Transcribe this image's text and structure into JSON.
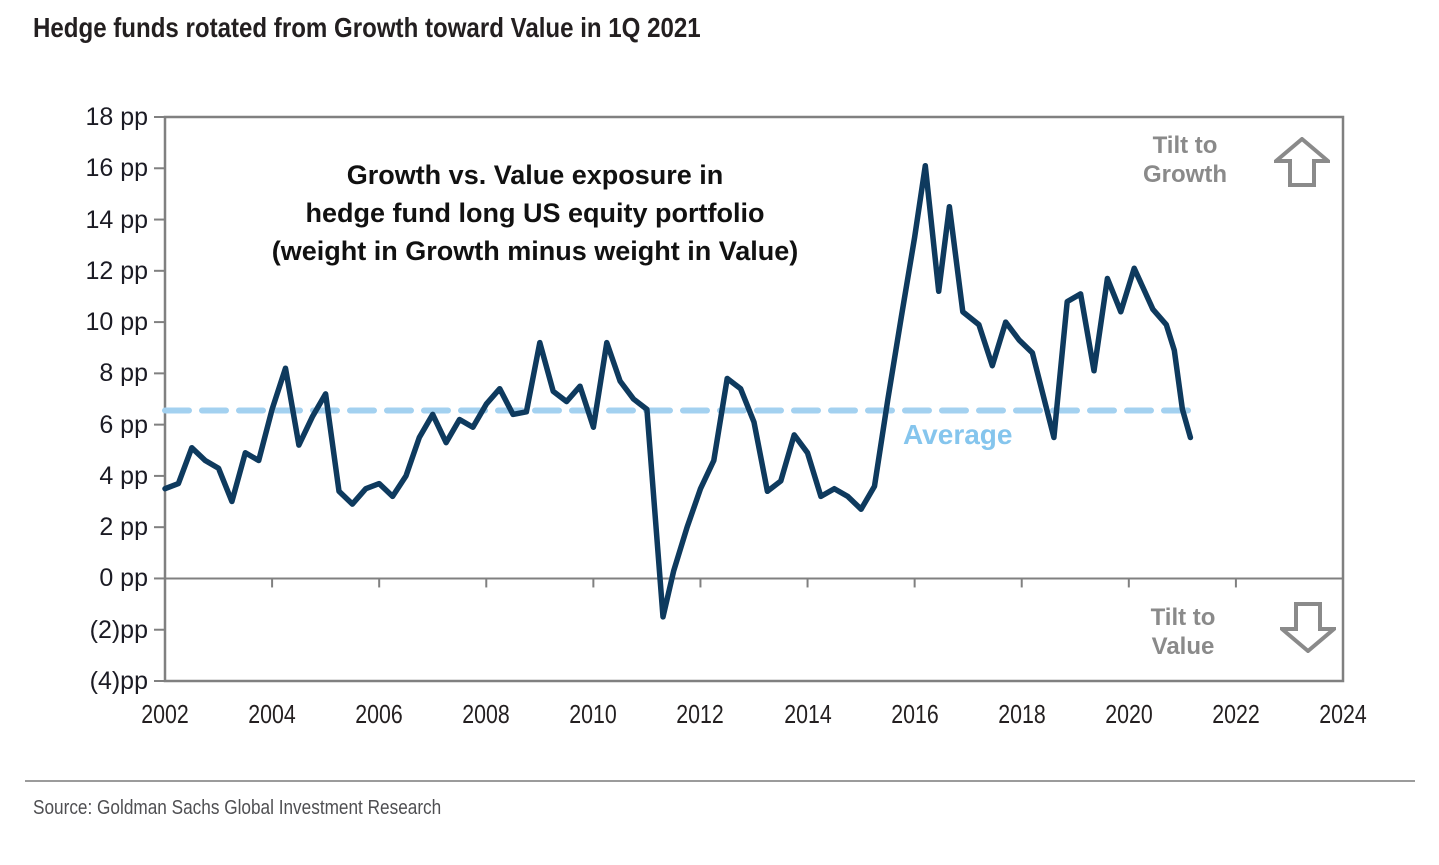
{
  "page": {
    "title": "Hedge funds rotated from Growth toward Value in 1Q 2021",
    "source": "Source: Goldman Sachs Global Investment Research"
  },
  "chart": {
    "inner_title_lines": {
      "0": "Growth vs. Value exposure in",
      "1": "hedge fund long US equity portfolio",
      "2": "(weight in Growth minus weight in Value)"
    },
    "annotations": {
      "tilt_growth_line1": "Tilt to",
      "tilt_growth_line2": "Growth",
      "tilt_value_line1": "Tilt to",
      "tilt_value_line2": "Value",
      "average_label": "Average"
    },
    "icons": {
      "up_arrow": "arrow-up-icon",
      "down_arrow": "arrow-down-icon"
    },
    "colors": {
      "line": "#0e3a5e",
      "average_dash": "#a3d1f0",
      "average_text": "#85c5ed",
      "axis_gray": "#808080",
      "tilt_gray": "#8a8a8a"
    }
  },
  "chart_data": {
    "type": "line",
    "title": "Growth vs. Value exposure in hedge fund long US equity portfolio (weight in Growth minus weight in Value)",
    "xlabel": "",
    "ylabel": "pp",
    "xlim": [
      2002,
      2024
    ],
    "ylim": [
      -4,
      18
    ],
    "grid": false,
    "legend_position": "none",
    "x_tick_values": [
      2002,
      2004,
      2006,
      2008,
      2010,
      2012,
      2014,
      2016,
      2018,
      2020,
      2022,
      2024
    ],
    "x_tick_labels": [
      "2002",
      "2004",
      "2006",
      "2008",
      "2010",
      "2012",
      "2014",
      "2016",
      "2018",
      "2020",
      "2022",
      "2024"
    ],
    "y_tick_values": [
      18,
      16,
      14,
      12,
      10,
      8,
      6,
      4,
      2,
      0,
      -2,
      -4
    ],
    "y_tick_labels": [
      "18 pp",
      "16 pp",
      "14 pp",
      "12 pp",
      "10 pp",
      "8 pp",
      "6 pp",
      "4 pp",
      "2 pp",
      "0 pp",
      "(2)pp",
      "(4)pp"
    ],
    "average": 6.55,
    "series": [
      {
        "name": "Growth minus Value weight in hedge fund long US equity portfolio",
        "points": [
          [
            2002.0,
            3.5
          ],
          [
            2002.25,
            3.7
          ],
          [
            2002.5,
            5.1
          ],
          [
            2002.75,
            4.6
          ],
          [
            2003.0,
            4.3
          ],
          [
            2003.25,
            3.0
          ],
          [
            2003.5,
            4.9
          ],
          [
            2003.75,
            4.6
          ],
          [
            2004.0,
            6.6
          ],
          [
            2004.25,
            8.2
          ],
          [
            2004.5,
            5.2
          ],
          [
            2004.75,
            6.3
          ],
          [
            2005.0,
            7.2
          ],
          [
            2005.25,
            3.4
          ],
          [
            2005.5,
            2.9
          ],
          [
            2005.75,
            3.5
          ],
          [
            2006.0,
            3.7
          ],
          [
            2006.25,
            3.2
          ],
          [
            2006.5,
            4.0
          ],
          [
            2006.75,
            5.5
          ],
          [
            2007.0,
            6.4
          ],
          [
            2007.25,
            5.3
          ],
          [
            2007.5,
            6.2
          ],
          [
            2007.75,
            5.9
          ],
          [
            2008.0,
            6.8
          ],
          [
            2008.25,
            7.4
          ],
          [
            2008.5,
            6.4
          ],
          [
            2008.75,
            6.5
          ],
          [
            2009.0,
            9.2
          ],
          [
            2009.25,
            7.3
          ],
          [
            2009.5,
            6.9
          ],
          [
            2009.75,
            7.5
          ],
          [
            2010.0,
            5.9
          ],
          [
            2010.25,
            9.2
          ],
          [
            2010.5,
            7.7
          ],
          [
            2010.75,
            7.0
          ],
          [
            2011.0,
            6.6
          ],
          [
            2011.3,
            -1.5
          ],
          [
            2011.5,
            0.3
          ],
          [
            2011.75,
            2.0
          ],
          [
            2012.0,
            3.5
          ],
          [
            2012.25,
            4.6
          ],
          [
            2012.5,
            7.8
          ],
          [
            2012.75,
            7.4
          ],
          [
            2013.0,
            6.1
          ],
          [
            2013.25,
            3.4
          ],
          [
            2013.5,
            3.8
          ],
          [
            2013.75,
            5.6
          ],
          [
            2014.0,
            4.9
          ],
          [
            2014.25,
            3.2
          ],
          [
            2014.5,
            3.5
          ],
          [
            2014.75,
            3.2
          ],
          [
            2015.0,
            2.7
          ],
          [
            2015.25,
            3.6
          ],
          [
            2015.5,
            7.0
          ],
          [
            2015.75,
            10.2
          ],
          [
            2016.0,
            13.3
          ],
          [
            2016.2,
            16.1
          ],
          [
            2016.45,
            11.2
          ],
          [
            2016.65,
            14.5
          ],
          [
            2016.9,
            10.4
          ],
          [
            2017.2,
            9.9
          ],
          [
            2017.45,
            8.3
          ],
          [
            2017.7,
            10.0
          ],
          [
            2017.95,
            9.3
          ],
          [
            2018.2,
            8.8
          ],
          [
            2018.6,
            5.5
          ],
          [
            2018.85,
            10.8
          ],
          [
            2019.1,
            11.1
          ],
          [
            2019.35,
            8.1
          ],
          [
            2019.6,
            11.7
          ],
          [
            2019.85,
            10.4
          ],
          [
            2020.1,
            12.1
          ],
          [
            2020.45,
            10.5
          ],
          [
            2020.7,
            9.9
          ],
          [
            2020.85,
            8.9
          ],
          [
            2021.0,
            6.6
          ],
          [
            2021.15,
            5.5
          ]
        ]
      }
    ]
  }
}
